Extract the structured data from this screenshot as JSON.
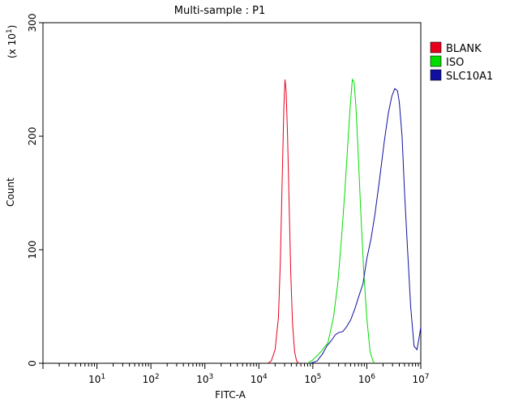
{
  "chart_data": {
    "type": "line",
    "title": "Multi-sample : P1",
    "xlabel": "FITC-A",
    "ylabel": "Count",
    "y_multiplier": "(x 10",
    "y_multiplier_exp": "1",
    "y_multiplier_close": ")",
    "x_scale": "log",
    "xlim": [
      1,
      10000000
    ],
    "ylim": [
      0,
      300
    ],
    "grid": false,
    "legend_position": "top-right",
    "x_ticks": [
      {
        "value": 10,
        "base": "10",
        "exp": "1"
      },
      {
        "value": 100,
        "base": "10",
        "exp": "2"
      },
      {
        "value": 1000,
        "base": "10",
        "exp": "3"
      },
      {
        "value": 10000,
        "base": "10",
        "exp": "4"
      },
      {
        "value": 100000,
        "base": "10",
        "exp": "5"
      },
      {
        "value": 1000000,
        "base": "10",
        "exp": "6"
      },
      {
        "value": 10000000,
        "base": "10",
        "exp": "7"
      }
    ],
    "y_ticks": [
      0,
      100,
      200,
      300
    ],
    "series": [
      {
        "name": "BLANK",
        "color": "#e8001c",
        "points": [
          [
            14500,
            0
          ],
          [
            17000,
            2
          ],
          [
            20000,
            12
          ],
          [
            23000,
            40
          ],
          [
            25000,
            90
          ],
          [
            27000,
            160
          ],
          [
            29000,
            225
          ],
          [
            30500,
            250
          ],
          [
            32000,
            240
          ],
          [
            34000,
            200
          ],
          [
            36000,
            150
          ],
          [
            39000,
            80
          ],
          [
            42000,
            35
          ],
          [
            46000,
            10
          ],
          [
            50000,
            2
          ],
          [
            55000,
            0
          ]
        ]
      },
      {
        "name": "ISO",
        "color": "#00dc00",
        "points": [
          [
            80000,
            0
          ],
          [
            100000,
            3
          ],
          [
            140000,
            10
          ],
          [
            190000,
            18
          ],
          [
            240000,
            40
          ],
          [
            290000,
            70
          ],
          [
            340000,
            110
          ],
          [
            390000,
            150
          ],
          [
            440000,
            190
          ],
          [
            490000,
            225
          ],
          [
            540000,
            250
          ],
          [
            580000,
            248
          ],
          [
            630000,
            225
          ],
          [
            700000,
            180
          ],
          [
            780000,
            130
          ],
          [
            880000,
            80
          ],
          [
            1000000,
            40
          ],
          [
            1150000,
            10
          ],
          [
            1300000,
            2
          ],
          [
            1400000,
            0
          ]
        ]
      },
      {
        "name": "SLC10A1",
        "color": "#1010a0",
        "points": [
          [
            90000,
            0
          ],
          [
            120000,
            2
          ],
          [
            150000,
            8
          ],
          [
            180000,
            15
          ],
          [
            220000,
            20
          ],
          [
            260000,
            25
          ],
          [
            300000,
            27
          ],
          [
            360000,
            28
          ],
          [
            420000,
            32
          ],
          [
            500000,
            38
          ],
          [
            600000,
            48
          ],
          [
            700000,
            58
          ],
          [
            850000,
            70
          ],
          [
            1000000,
            92
          ],
          [
            1200000,
            110
          ],
          [
            1400000,
            130
          ],
          [
            1700000,
            160
          ],
          [
            2100000,
            195
          ],
          [
            2500000,
            220
          ],
          [
            2900000,
            235
          ],
          [
            3300000,
            242
          ],
          [
            3700000,
            240
          ],
          [
            4000000,
            230
          ],
          [
            4500000,
            200
          ],
          [
            5000000,
            150
          ],
          [
            5700000,
            100
          ],
          [
            6500000,
            50
          ],
          [
            7500000,
            15
          ],
          [
            8500000,
            12
          ],
          [
            9500000,
            25
          ],
          [
            10000000,
            32
          ]
        ]
      }
    ]
  }
}
